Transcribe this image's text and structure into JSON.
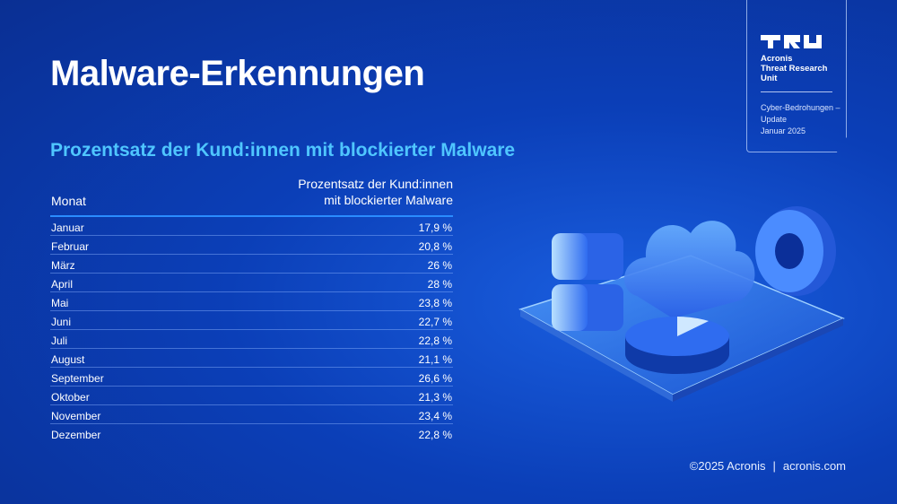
{
  "title": "Malware-Erkennungen",
  "subtitle": "Prozentsatz der Kund:innen mit blockierter Malware",
  "badge": {
    "org_line1": "Acronis",
    "org_line2": "Threat Research",
    "org_line3": "Unit",
    "issue": "Cyber-Bedrohungen – Update",
    "date": "Januar 2025",
    "logo_icon": "tru-logo-icon"
  },
  "footer": {
    "copyright": "©2025 Acronis",
    "separator": "|",
    "site": "acronis.com"
  },
  "chart_data": {
    "type": "table",
    "columns": [
      "Monat",
      "Prozentsatz der Kund:innen mit blockierter Malware"
    ],
    "column_header_value_lines": [
      "Prozentsatz der Kund:innen",
      "mit blockierter Malware"
    ],
    "rows": [
      {
        "month": "Januar",
        "display": "17,9 %",
        "value": 17.9
      },
      {
        "month": "Februar",
        "display": "20,8 %",
        "value": 20.8
      },
      {
        "month": "März",
        "display": "26 %",
        "value": 26
      },
      {
        "month": "April",
        "display": "28 %",
        "value": 28
      },
      {
        "month": "Mai",
        "display": "23,8 %",
        "value": 23.8
      },
      {
        "month": "Juni",
        "display": "22,7 %",
        "value": 22.7
      },
      {
        "month": "Juli",
        "display": "22,8 %",
        "value": 22.8
      },
      {
        "month": "August",
        "display": "21,1 %",
        "value": 21.1
      },
      {
        "month": "September",
        "display": "26,6 %",
        "value": 26.6
      },
      {
        "month": "Oktober",
        "display": "21,3 %",
        "value": 21.3
      },
      {
        "month": "November",
        "display": "23,4 %",
        "value": 23.4
      },
      {
        "month": "Dezember",
        "display": "22,8 %",
        "value": 22.8
      }
    ]
  },
  "colors": {
    "background": "#0b3fb8",
    "accent": "#4fc6ff",
    "rule": "#2a8cff"
  }
}
